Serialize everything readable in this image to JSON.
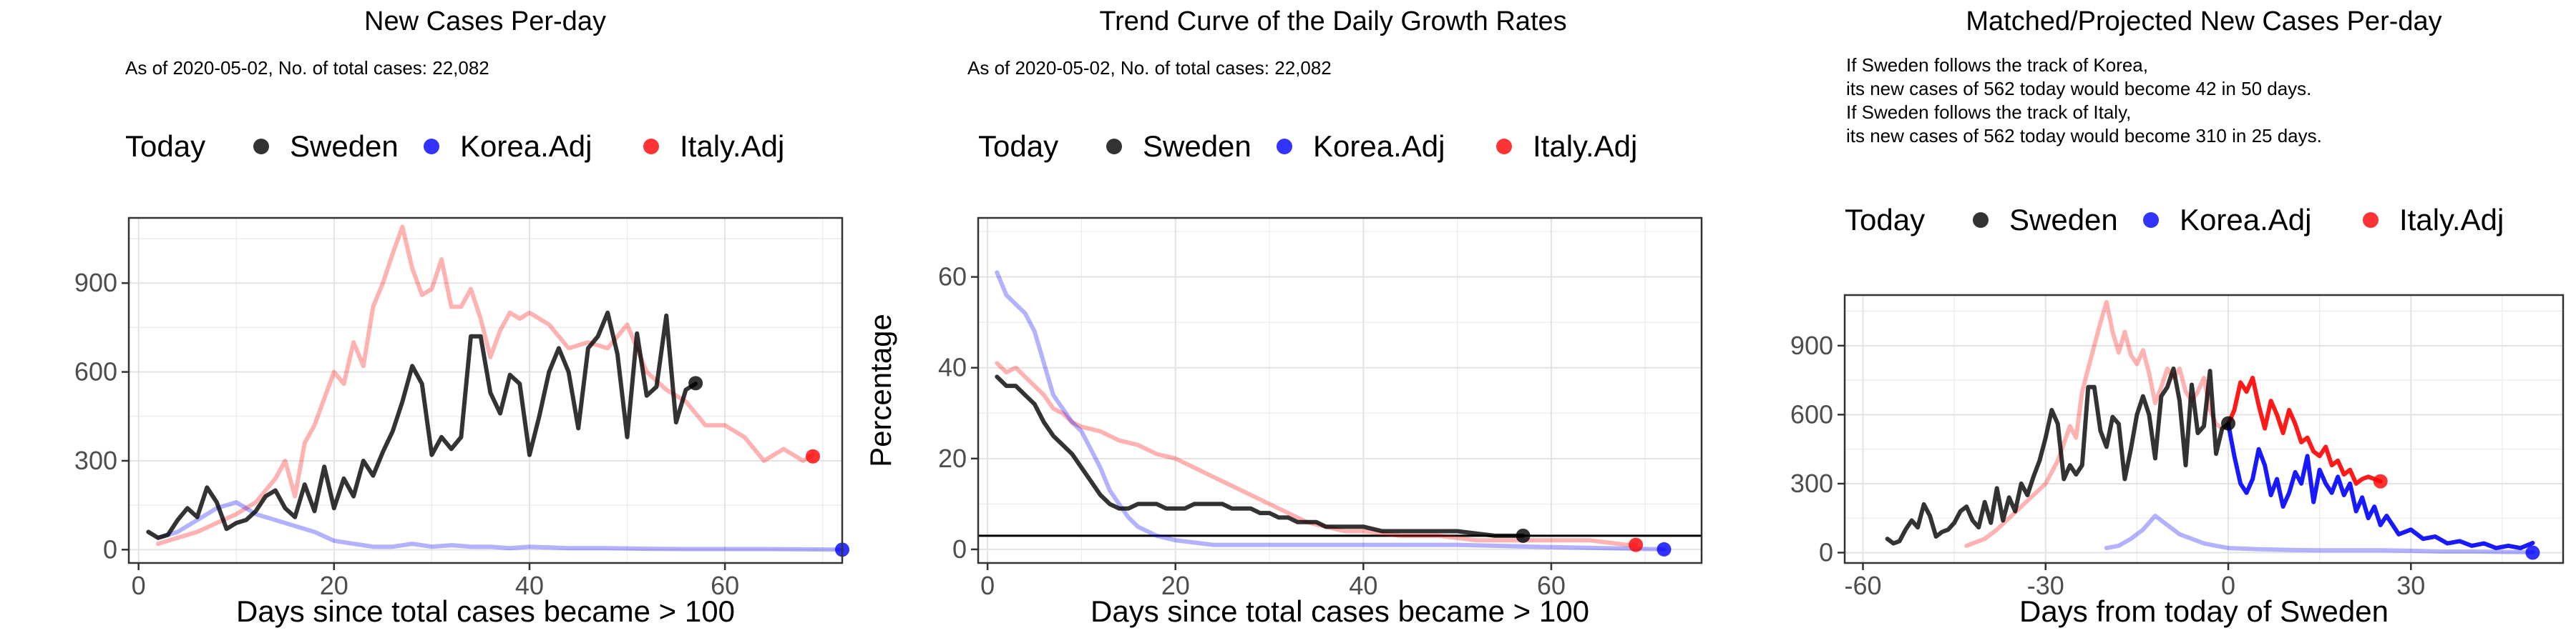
{
  "chart_data": [
    {
      "type": "line",
      "title": "New Cases Per-day",
      "subtitle": "As of 2020-05-02, No. of total cases: 22,082",
      "legend": {
        "title": "Today",
        "items": [
          "Sweden",
          "Korea.Adj",
          "Italy.Adj"
        ],
        "position": "top"
      },
      "xlabel": "Days since total cases became > 100",
      "ylabel": "",
      "xlim": [
        -1,
        72
      ],
      "ylim": [
        -45,
        1120
      ],
      "xticks": [
        0,
        20,
        40,
        60
      ],
      "yticks": [
        0,
        300,
        600,
        900
      ],
      "xtick_labels": [
        "0",
        "20",
        "40",
        "60"
      ],
      "ytick_labels": [
        "0",
        "300",
        "600",
        "900"
      ],
      "grid": true,
      "series": [
        {
          "name": "Italy.Adj",
          "color": "#ff0000",
          "opacity": 0.3,
          "x": [
            2,
            4,
            6,
            8,
            10,
            12,
            14,
            15,
            16,
            17,
            18,
            20,
            21,
            22,
            23,
            24,
            25,
            26,
            27,
            28,
            29,
            30,
            31,
            32,
            33,
            34,
            35,
            36,
            37,
            38,
            39,
            40,
            42,
            44,
            46,
            48,
            50,
            52,
            54,
            56,
            58,
            60,
            62,
            64,
            66,
            68,
            69
          ],
          "y": [
            20,
            40,
            60,
            90,
            120,
            160,
            240,
            300,
            180,
            360,
            420,
            600,
            560,
            700,
            620,
            820,
            900,
            1000,
            1090,
            950,
            860,
            880,
            980,
            820,
            820,
            880,
            780,
            650,
            740,
            800,
            780,
            800,
            760,
            680,
            700,
            680,
            760,
            600,
            540,
            500,
            420,
            420,
            380,
            300,
            340,
            300,
            320
          ]
        },
        {
          "name": "Korea.Adj",
          "color": "#0000ff",
          "opacity": 0.3,
          "x": [
            2,
            4,
            5,
            6,
            8,
            10,
            12,
            14,
            16,
            18,
            20,
            22,
            24,
            26,
            28,
            30,
            32,
            34,
            36,
            38,
            40,
            44,
            48,
            52,
            56,
            60,
            64,
            68,
            72
          ],
          "y": [
            40,
            60,
            80,
            100,
            140,
            160,
            120,
            100,
            80,
            60,
            30,
            20,
            10,
            10,
            20,
            10,
            15,
            10,
            10,
            5,
            10,
            5,
            5,
            3,
            2,
            2,
            2,
            1,
            0
          ]
        },
        {
          "name": "Sweden",
          "color": "#000000",
          "opacity": 0.8,
          "x": [
            1,
            2,
            3,
            4,
            5,
            6,
            7,
            8,
            9,
            10,
            11,
            12,
            13,
            14,
            15,
            16,
            17,
            18,
            19,
            20,
            21,
            22,
            23,
            24,
            25,
            26,
            27,
            28,
            29,
            30,
            31,
            32,
            33,
            34,
            35,
            36,
            37,
            38,
            39,
            40,
            41,
            42,
            43,
            44,
            45,
            46,
            47,
            48,
            49,
            50,
            51,
            52,
            53,
            54,
            55,
            56,
            57
          ],
          "y": [
            60,
            40,
            50,
            100,
            140,
            110,
            210,
            160,
            70,
            90,
            100,
            130,
            180,
            200,
            140,
            110,
            220,
            130,
            280,
            140,
            240,
            180,
            300,
            250,
            330,
            400,
            500,
            620,
            560,
            320,
            380,
            340,
            380,
            720,
            720,
            530,
            460,
            590,
            560,
            320,
            450,
            600,
            680,
            600,
            410,
            680,
            720,
            800,
            660,
            380,
            730,
            520,
            550,
            790,
            430,
            540,
            560
          ]
        }
      ],
      "today_points": [
        {
          "series": "Sweden",
          "x": 57,
          "y": 562
        },
        {
          "series": "Korea.Adj",
          "x": 72,
          "y": 0
        },
        {
          "series": "Italy.Adj",
          "x": 69,
          "y": 315
        }
      ]
    },
    {
      "type": "line",
      "title": "Trend Curve of the Daily Growth Rates",
      "subtitle": "As of 2020-05-02, No. of total cases: 22,082",
      "legend": {
        "title": "Today",
        "items": [
          "Sweden",
          "Korea.Adj",
          "Italy.Adj"
        ],
        "position": "top"
      },
      "xlabel": "Days since total cases became > 100",
      "ylabel": "Percentage",
      "xlim": [
        -1,
        76
      ],
      "ylim": [
        -3,
        73
      ],
      "xticks": [
        0,
        20,
        40,
        60
      ],
      "yticks": [
        0,
        20,
        40,
        60
      ],
      "xtick_labels": [
        "0",
        "20",
        "40",
        "60"
      ],
      "ytick_labels": [
        "0",
        "20",
        "40",
        "60"
      ],
      "grid": true,
      "hline": 3,
      "series": [
        {
          "name": "Italy.Adj",
          "color": "#ff0000",
          "opacity": 0.3,
          "x": [
            1,
            2,
            3,
            4,
            5,
            6,
            7,
            8,
            9,
            10,
            12,
            14,
            16,
            18,
            20,
            22,
            24,
            26,
            28,
            30,
            32,
            34,
            36,
            38,
            40,
            44,
            48,
            52,
            56,
            60,
            64,
            68,
            69
          ],
          "y": [
            41,
            39,
            40,
            38,
            36,
            34,
            31,
            30,
            28,
            27,
            26,
            24,
            23,
            21,
            20,
            18,
            16,
            14,
            12,
            10,
            8,
            6,
            5,
            4,
            4,
            3,
            3,
            2,
            2,
            2,
            2,
            1,
            1
          ]
        },
        {
          "name": "Korea.Adj",
          "color": "#0000ff",
          "opacity": 0.3,
          "x": [
            1,
            2,
            3,
            4,
            5,
            6,
            7,
            8,
            9,
            10,
            11,
            12,
            13,
            14,
            15,
            16,
            17,
            18,
            20,
            22,
            24,
            28,
            32,
            40,
            50,
            60,
            72
          ],
          "y": [
            61,
            56,
            54,
            52,
            48,
            41,
            34,
            31,
            28,
            26,
            22,
            18,
            13,
            10,
            7,
            5,
            4,
            3,
            2,
            1.5,
            1,
            1,
            1,
            1,
            1,
            0.5,
            0
          ]
        },
        {
          "name": "Sweden",
          "color": "#000000",
          "opacity": 0.8,
          "x": [
            1,
            2,
            3,
            4,
            5,
            6,
            7,
            8,
            9,
            10,
            11,
            12,
            13,
            14,
            15,
            16,
            17,
            18,
            19,
            20,
            21,
            22,
            23,
            24,
            25,
            26,
            27,
            28,
            29,
            30,
            31,
            32,
            33,
            34,
            35,
            36,
            38,
            40,
            42,
            44,
            46,
            48,
            50,
            52,
            54,
            56,
            57
          ],
          "y": [
            38,
            36,
            36,
            34,
            32,
            28,
            25,
            23,
            21,
            18,
            15,
            12,
            10,
            9,
            9,
            10,
            10,
            10,
            9,
            9,
            9,
            10,
            10,
            10,
            10,
            9,
            9,
            9,
            8,
            8,
            7,
            7,
            6,
            6,
            6,
            5,
            5,
            5,
            4,
            4,
            4,
            4,
            4,
            3.5,
            3,
            3,
            3
          ]
        }
      ],
      "today_points": [
        {
          "series": "Sweden",
          "x": 57,
          "y": 3
        },
        {
          "series": "Korea.Adj",
          "x": 72,
          "y": 0
        },
        {
          "series": "Italy.Adj",
          "x": 69,
          "y": 1
        }
      ]
    },
    {
      "type": "line",
      "title": "Matched/Projected New Cases Per-day",
      "annotation_lines": [
        "If Sweden follows the track of Korea,",
        "its new cases of 562 today would become 42 in 50 days.",
        "If Sweden follows the track of Italy,",
        "its new cases of 562 today would become 310 in 25 days."
      ],
      "legend": {
        "title": "Today",
        "items": [
          "Sweden",
          "Korea.Adj",
          "Italy.Adj"
        ],
        "position": "top"
      },
      "xlabel": "Days from today of Sweden",
      "ylabel": "",
      "xlim": [
        -63,
        55
      ],
      "ylim": [
        -45,
        1120
      ],
      "xticks": [
        -60,
        -30,
        0,
        30
      ],
      "yticks": [
        0,
        300,
        600,
        900
      ],
      "xtick_labels": [
        "-60",
        "-30",
        "0",
        "30"
      ],
      "ytick_labels": [
        "0",
        "300",
        "600",
        "900"
      ],
      "grid": true,
      "series": [
        {
          "name": "Italy.Adj (past)",
          "color": "#ff0000",
          "opacity": 0.3,
          "x": [
            -43,
            -40,
            -38,
            -36,
            -34,
            -32,
            -30,
            -28,
            -26,
            -25,
            -24,
            -23,
            -22,
            -21,
            -20,
            -19,
            -18,
            -17,
            -16,
            -15,
            -14,
            -13,
            -12,
            -11,
            -10,
            -9,
            -8,
            -7,
            -6,
            -5,
            -4,
            -3,
            -2,
            -1,
            0
          ],
          "y": [
            30,
            60,
            100,
            150,
            200,
            250,
            300,
            400,
            550,
            500,
            700,
            800,
            900,
            1000,
            1090,
            960,
            870,
            960,
            860,
            820,
            880,
            780,
            650,
            720,
            800,
            760,
            800,
            700,
            660,
            700,
            760,
            620,
            560,
            540,
            560
          ]
        },
        {
          "name": "Italy.Adj (projected)",
          "color": "#ff0000",
          "opacity": 0.9,
          "x": [
            0,
            1,
            2,
            3,
            4,
            5,
            6,
            7,
            8,
            9,
            10,
            11,
            12,
            13,
            14,
            15,
            16,
            17,
            18,
            19,
            20,
            21,
            22,
            23,
            24,
            25
          ],
          "y": [
            560,
            620,
            740,
            700,
            760,
            640,
            540,
            660,
            600,
            520,
            620,
            560,
            480,
            500,
            440,
            420,
            460,
            380,
            400,
            340,
            360,
            300,
            320,
            330,
            320,
            310
          ]
        },
        {
          "name": "Korea.Adj (past)",
          "color": "#0000ff",
          "opacity": 0.3,
          "x": [
            -20,
            -18,
            -16,
            -14,
            -12,
            -10,
            -8,
            -6,
            -4,
            -2,
            0,
            5,
            10,
            15,
            20,
            25,
            30,
            35,
            40,
            45,
            50
          ],
          "y": [
            20,
            30,
            60,
            100,
            160,
            120,
            80,
            60,
            40,
            30,
            20,
            15,
            12,
            10,
            10,
            10,
            8,
            5,
            5,
            3,
            2
          ]
        },
        {
          "name": "Korea.Adj (projected)",
          "color": "#0000ff",
          "opacity": 0.9,
          "x": [
            0,
            1,
            2,
            3,
            4,
            5,
            6,
            7,
            8,
            9,
            10,
            11,
            12,
            13,
            14,
            15,
            16,
            17,
            18,
            19,
            20,
            21,
            22,
            23,
            24,
            25,
            26,
            28,
            30,
            32,
            34,
            36,
            38,
            40,
            42,
            44,
            46,
            48,
            50
          ],
          "y": [
            560,
            420,
            300,
            260,
            320,
            450,
            380,
            250,
            320,
            200,
            260,
            350,
            300,
            420,
            220,
            360,
            300,
            260,
            330,
            250,
            300,
            180,
            240,
            150,
            200,
            120,
            160,
            80,
            100,
            60,
            70,
            40,
            50,
            30,
            40,
            20,
            30,
            20,
            42
          ]
        },
        {
          "name": "Sweden",
          "color": "#000000",
          "opacity": 0.8,
          "x": [
            -56,
            -55,
            -54,
            -53,
            -52,
            -51,
            -50,
            -49,
            -48,
            -47,
            -46,
            -45,
            -44,
            -43,
            -42,
            -41,
            -40,
            -39,
            -38,
            -37,
            -36,
            -35,
            -34,
            -33,
            -32,
            -31,
            -30,
            -29,
            -28,
            -27,
            -26,
            -25,
            -24,
            -23,
            -22,
            -21,
            -20,
            -19,
            -18,
            -17,
            -16,
            -15,
            -14,
            -13,
            -12,
            -11,
            -10,
            -9,
            -8,
            -7,
            -6,
            -5,
            -4,
            -3,
            -2,
            -1,
            0
          ],
          "y": [
            60,
            40,
            50,
            100,
            140,
            110,
            210,
            160,
            70,
            90,
            100,
            130,
            180,
            200,
            140,
            110,
            220,
            130,
            280,
            140,
            240,
            180,
            300,
            250,
            330,
            400,
            500,
            620,
            560,
            320,
            380,
            340,
            380,
            720,
            720,
            530,
            460,
            590,
            560,
            320,
            450,
            600,
            680,
            600,
            410,
            680,
            720,
            800,
            660,
            380,
            730,
            520,
            550,
            790,
            430,
            540,
            560
          ]
        }
      ],
      "today_points": [
        {
          "series": "Sweden",
          "x": 0,
          "y": 562
        },
        {
          "series": "Korea.Adj",
          "x": 50,
          "y": 0
        },
        {
          "series": "Italy.Adj",
          "x": 25,
          "y": 310
        }
      ]
    }
  ]
}
